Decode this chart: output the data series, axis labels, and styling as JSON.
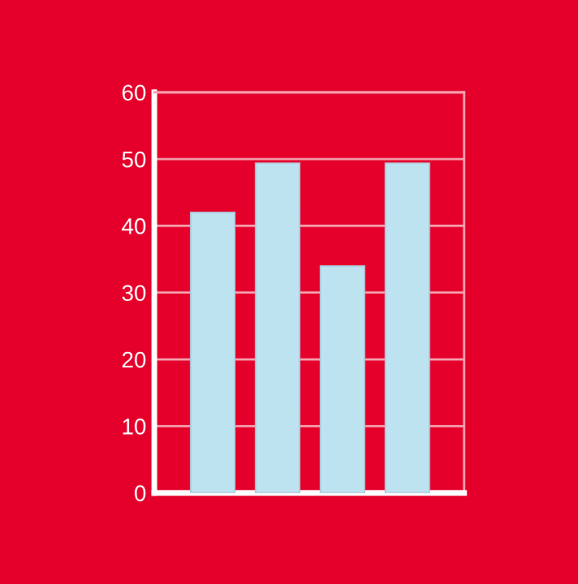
{
  "chart_data": {
    "type": "bar",
    "categories": [
      null,
      null,
      null,
      null
    ],
    "values": [
      42,
      49.4,
      34,
      49.4
    ],
    "color": "#bee3f0",
    "ylim": [
      0,
      60
    ],
    "yticks": [
      0,
      10,
      20,
      30,
      40,
      50,
      60
    ],
    "grid": "y",
    "tick_labels": "y"
  }
}
